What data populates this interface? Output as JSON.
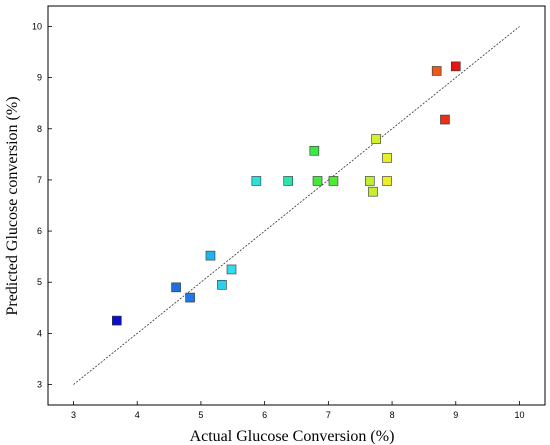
{
  "chart_data": {
    "type": "scatter",
    "title": "",
    "xlabel": "Actual Glucose Conversion (%)",
    "ylabel": "Predicted Glucose conversion (%)",
    "xlim": [
      2.6,
      10.4
    ],
    "ylim": [
      2.6,
      10.4
    ],
    "xticks": [
      "3",
      "4",
      "5",
      "6",
      "7",
      "8",
      "9",
      "10"
    ],
    "yticks": [
      "3",
      "4",
      "5",
      "6",
      "7",
      "8",
      "9",
      "10"
    ],
    "grid": false,
    "legend": "none",
    "reference_line": {
      "from": [
        3,
        3
      ],
      "to": [
        10,
        10
      ],
      "style": "dashed"
    },
    "points": [
      {
        "x": 3.68,
        "y": 4.25,
        "color": "#0a10c8"
      },
      {
        "x": 4.61,
        "y": 4.9,
        "color": "#1f6fe0"
      },
      {
        "x": 4.83,
        "y": 4.7,
        "color": "#1f78e6"
      },
      {
        "x": 5.15,
        "y": 5.52,
        "color": "#22b3ef"
      },
      {
        "x": 5.33,
        "y": 4.95,
        "color": "#2ccff0"
      },
      {
        "x": 5.48,
        "y": 5.25,
        "color": "#30dcee"
      },
      {
        "x": 5.87,
        "y": 6.98,
        "color": "#30e0d8"
      },
      {
        "x": 6.37,
        "y": 6.98,
        "color": "#2fe0b0"
      },
      {
        "x": 6.78,
        "y": 7.57,
        "color": "#3ee64a"
      },
      {
        "x": 6.83,
        "y": 6.98,
        "color": "#47e83e"
      },
      {
        "x": 7.08,
        "y": 6.98,
        "color": "#4fea38"
      },
      {
        "x": 7.65,
        "y": 6.98,
        "color": "#c0ee30"
      },
      {
        "x": 7.7,
        "y": 6.77,
        "color": "#c6ee30"
      },
      {
        "x": 7.75,
        "y": 7.8,
        "color": "#d4ef2c"
      },
      {
        "x": 7.92,
        "y": 7.43,
        "color": "#e6f02a"
      },
      {
        "x": 7.92,
        "y": 6.98,
        "color": "#ecec2a"
      },
      {
        "x": 8.7,
        "y": 9.13,
        "color": "#e85a1e"
      },
      {
        "x": 8.83,
        "y": 8.18,
        "color": "#e8301a"
      },
      {
        "x": 9.0,
        "y": 9.22,
        "color": "#e81414"
      }
    ]
  }
}
